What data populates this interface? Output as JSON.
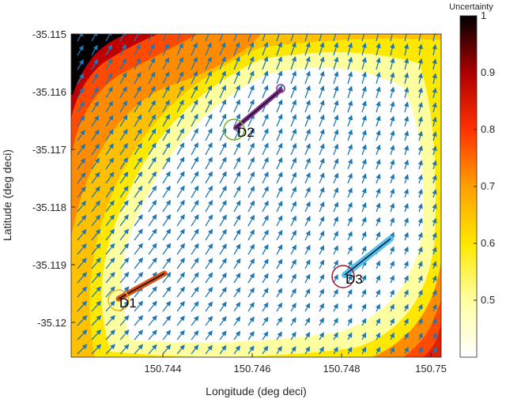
{
  "chart_data": {
    "type": "heatmap",
    "title": "",
    "xlabel": "Longitude (deg deci)",
    "ylabel": "Latitude (deg deci)",
    "xlim": [
      150.7425,
      150.7503
    ],
    "ylim": [
      -35.1206,
      -35.115
    ],
    "x_ticks": [
      150.744,
      150.746,
      150.748,
      150.75
    ],
    "x_tick_labels": [
      "150.744",
      "150.746",
      "150.748",
      "150.75"
    ],
    "y_ticks": [
      -35.115,
      -35.116,
      -35.117,
      -35.118,
      -35.119,
      -35.12
    ],
    "y_tick_labels": [
      "-35.115",
      "-35.116",
      "-35.117",
      "-35.118",
      "-35.119",
      "-35.12"
    ],
    "grid": false,
    "colorbar": {
      "title": "Uncertainty",
      "range": [
        0.4,
        1.0
      ],
      "ticks": [
        0.5,
        0.6,
        0.7,
        0.8,
        0.9,
        1.0
      ],
      "tick_labels": [
        "0.5",
        "0.6",
        "0.7",
        "0.8",
        "0.9",
        "1"
      ],
      "colormap": "hot (reversed)",
      "position": "right"
    },
    "heatmap_description": "Uncertainty field: low (white, ~0.4) in interior triangular region bounded by drone positions; rises to yellow/orange near edges and to black (~1.0) in the upper-left corner; orange/red in lower-right corner.",
    "quiver": {
      "color": "#1f77b4",
      "description": "Blue vector field arrows on a regular grid covering the plot, mostly pointing up and to the right (north-north-east)."
    },
    "drones": [
      {
        "name": "D1",
        "current": {
          "lon": 150.7435,
          "lat": -35.1195
        },
        "trajectory_start": {
          "lon": 150.7446,
          "lat": -35.1191
        },
        "marker_color": "#d95319",
        "circle_color": "#edb120"
      },
      {
        "name": "D2",
        "current": {
          "lon": 150.746,
          "lat": -35.1166
        },
        "trajectory_start": {
          "lon": 150.7469,
          "lat": -35.1158
        },
        "marker_color": "#7e2f8e",
        "circle_color": "#77ac30"
      },
      {
        "name": "D3",
        "current": {
          "lon": 150.7481,
          "lat": -35.1191
        },
        "trajectory_start": {
          "lon": 150.7492,
          "lat": -35.1185
        },
        "marker_color": "#4dbeee",
        "circle_color": "#a2142f"
      }
    ]
  },
  "labels": {
    "xlabel": "Longitude (deg deci)",
    "ylabel": "Latitude (deg deci)",
    "colorbar_title": "Uncertainty",
    "x_ticks": [
      "150.744",
      "150.746",
      "150.748",
      "150.75"
    ],
    "y_ticks": [
      "-35.115",
      "-35.116",
      "-35.117",
      "-35.118",
      "-35.119",
      "-35.12"
    ],
    "cb_ticks": [
      "1",
      "0.9",
      "0.8",
      "0.7",
      "0.6",
      "0.5"
    ],
    "drones": [
      "D1",
      "D2",
      "D3"
    ]
  }
}
